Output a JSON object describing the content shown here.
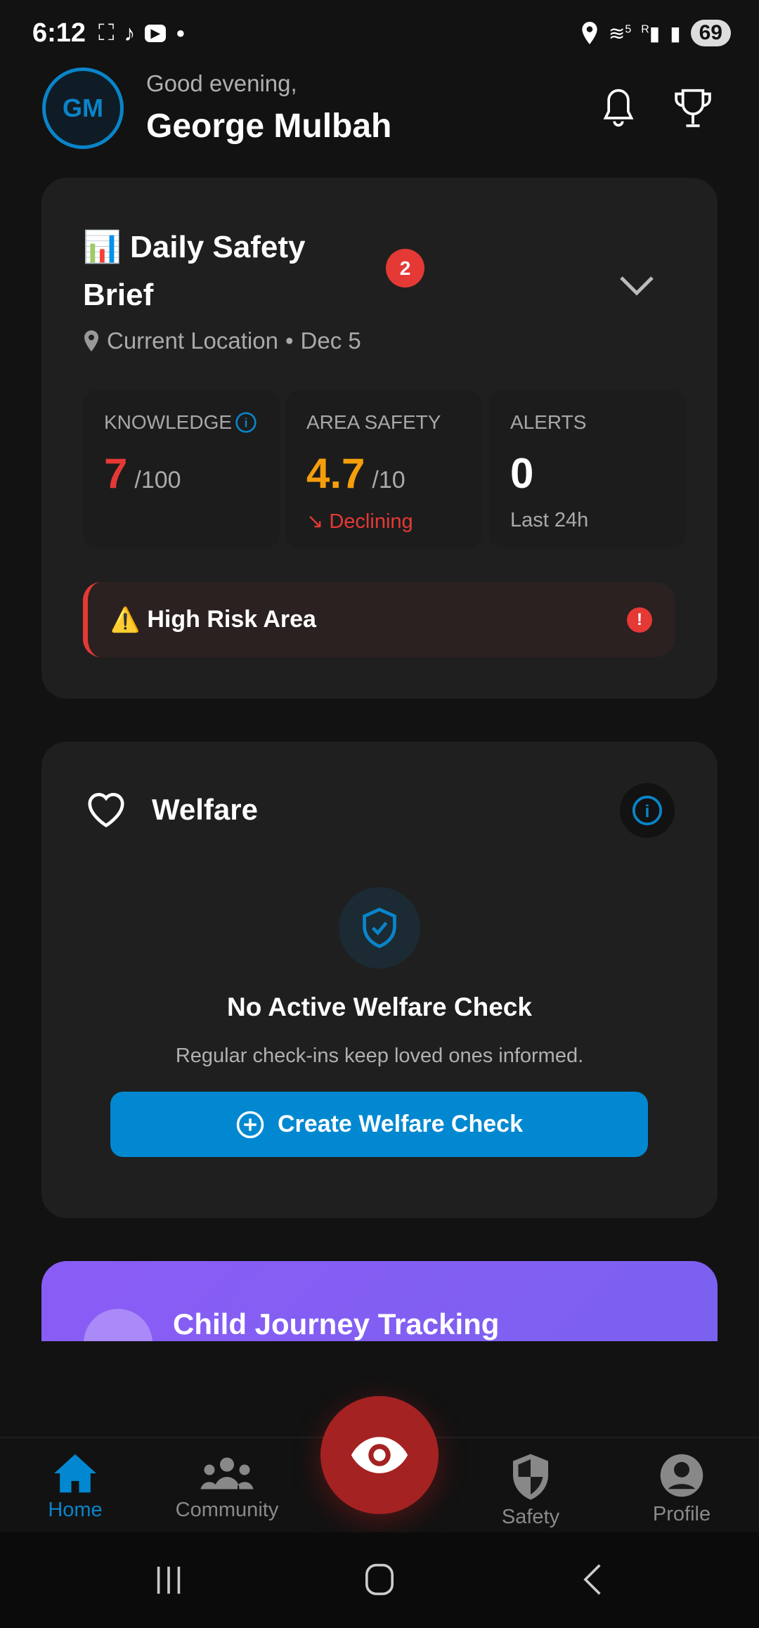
{
  "status_bar": {
    "time": "6:12",
    "battery": "69",
    "network": "5",
    "roaming": "R"
  },
  "header": {
    "avatar_initials": "GM",
    "greeting": "Good evening,",
    "user_name": "George Mulbah"
  },
  "daily_brief": {
    "title": "📊 Daily Safety Brief",
    "badge_count": "2",
    "location": "Current Location",
    "date": "Dec 5",
    "separator": "•",
    "stats": [
      {
        "label": "KNOWLEDGE",
        "value": "7",
        "max": "/100",
        "color": "#e53935"
      },
      {
        "label": "AREA SAFETY",
        "value": "4.7",
        "max": "/10",
        "trend": "Declining",
        "color": "#f59e0b"
      },
      {
        "label": "ALERTS",
        "value": "0",
        "sub": "Last 24h",
        "color": "#ffffff"
      }
    ],
    "alert": {
      "icon": "⚠️",
      "text": "High Risk Area",
      "mark": "!"
    }
  },
  "welfare": {
    "title": "Welfare",
    "empty_title": "No Active Welfare Check",
    "empty_subtitle": "Regular check-ins keep loved ones informed.",
    "button_label": "Create Welfare Check"
  },
  "child_journey": {
    "title": "Child Journey Tracking"
  },
  "bottom_nav": {
    "items": [
      {
        "label": "Home",
        "active": true
      },
      {
        "label": "Community"
      },
      {
        "label": "Safety"
      },
      {
        "label": "Profile"
      }
    ]
  },
  "colors": {
    "accent": "#0288d1",
    "danger": "#e53935",
    "warning": "#f59e0b",
    "purple": "#8b5cf6",
    "fab": "#a52222"
  }
}
